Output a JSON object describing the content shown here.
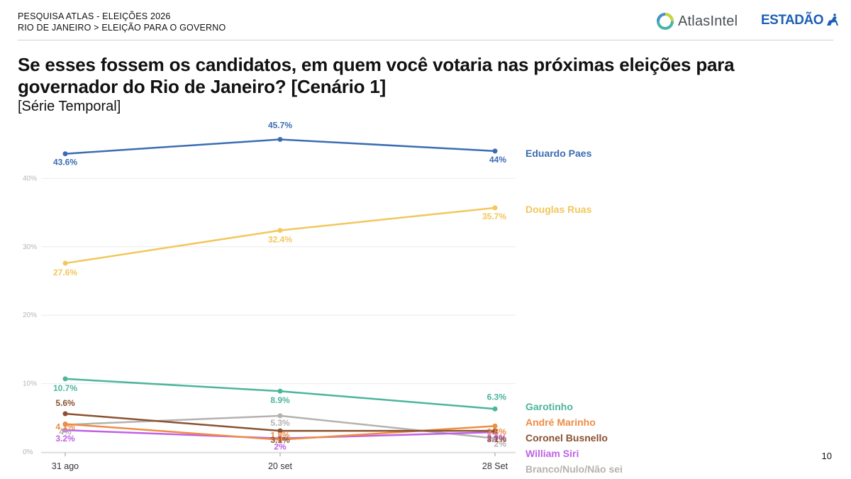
{
  "header": {
    "line1": "PESQUISA ATLAS - ELEIÇÕES 2026",
    "line2": "RIO DE JANEIRO > ELEIÇÃO PARA O GOVERNO"
  },
  "logos": {
    "atlas": "AtlasIntel",
    "estadao": "ESTADÃO"
  },
  "page_number": "10",
  "colors": {
    "Eduardo Paes": "#3b6db3",
    "Douglas Ruas": "#f2c75c",
    "Garotinho": "#4cb59c",
    "André Marinho": "#ee8d45",
    "Coronel Busnello": "#8a5230",
    "William Siri": "#c061e6",
    "Branco/Nulo/Não sei": "#b4b2b1"
  },
  "chart_data": {
    "type": "line",
    "title": "Se esses fossem os candidatos, em quem você votaria nas próximas eleições para governador do Rio de Janeiro? [Cenário 1]",
    "subtitle": "[Série Temporal]",
    "x": [
      "31 ago",
      "20 set",
      "28 Set"
    ],
    "yticks": [
      "0%",
      "10%",
      "20%",
      "30%",
      "40%"
    ],
    "ylim": [
      0,
      45.7
    ],
    "grid": true,
    "legend": "right",
    "series": [
      {
        "name": "Eduardo Paes",
        "values": [
          43.6,
          45.7,
          44.0
        ],
        "labels": [
          "43.6%",
          "45.7%",
          "44%"
        ]
      },
      {
        "name": "Douglas Ruas",
        "values": [
          27.6,
          32.4,
          35.7
        ],
        "labels": [
          "27.6%",
          "32.4%",
          "35.7%"
        ]
      },
      {
        "name": "Garotinho",
        "values": [
          10.7,
          8.9,
          6.3
        ],
        "labels": [
          "10.7%",
          "8.9%",
          "6.3%"
        ]
      },
      {
        "name": "André Marinho",
        "values": [
          4.1,
          1.8,
          3.8
        ],
        "labels": [
          "4.1%",
          "1.8%",
          "3.8%"
        ]
      },
      {
        "name": "Coronel Busnello",
        "values": [
          5.6,
          3.1,
          3.1
        ],
        "labels": [
          "5.6%",
          "3.1%",
          "3.1%"
        ]
      },
      {
        "name": "William Siri",
        "values": [
          3.2,
          2.0,
          2.9
        ],
        "labels": [
          "3.2%",
          "2%",
          "2.9%"
        ]
      },
      {
        "name": "Branco/Nulo/Não sei",
        "values": [
          4.0,
          5.3,
          2.0
        ],
        "labels": [
          "4%",
          "5.3%",
          "2%"
        ]
      }
    ]
  }
}
